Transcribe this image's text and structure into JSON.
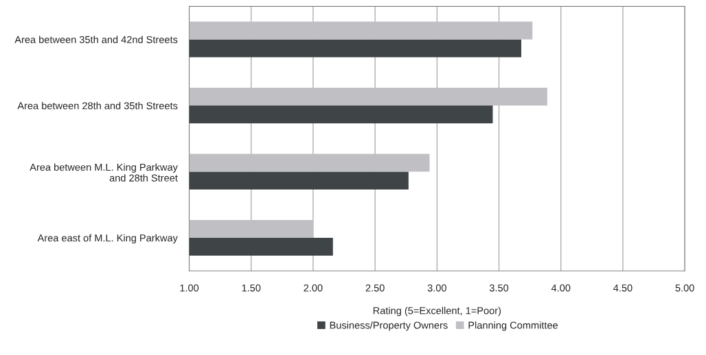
{
  "chart_data": {
    "type": "bar",
    "orientation": "horizontal",
    "categories": [
      "Area between 35th and 42nd Streets",
      "Area between 28th and 35th Streets",
      "Area between M.L. King Parkway\nand 28th Street",
      "Area east of M.L. King Parkway"
    ],
    "series": [
      {
        "name": "Business/Property Owners",
        "color": "#3f4447",
        "values": [
          3.68,
          3.45,
          2.77,
          2.16
        ]
      },
      {
        "name": "Planning Committee",
        "color": "#c0c0c4",
        "values": [
          3.77,
          3.89,
          2.94,
          2.0
        ]
      }
    ],
    "xlabel": "Rating (5=Excellent, 1=Poor)",
    "xlim": [
      1,
      5
    ],
    "xticks": [
      {
        "value": 1,
        "label": "1.00"
      },
      {
        "value": 1.5,
        "label": "1.50"
      },
      {
        "value": 2,
        "label": "2.00"
      },
      {
        "value": 2.5,
        "label": "2.50"
      },
      {
        "value": 3,
        "label": "3.00"
      },
      {
        "value": 3.5,
        "label": "3.50"
      },
      {
        "value": 4,
        "label": "4.00"
      },
      {
        "value": 4.5,
        "label": "4.50"
      },
      {
        "value": 5,
        "label": "5.00"
      }
    ],
    "grid": "x",
    "legend": "bottom"
  }
}
